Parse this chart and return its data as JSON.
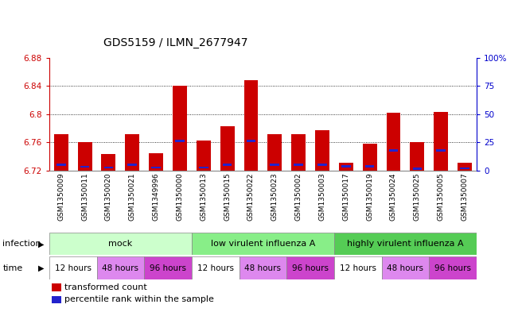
{
  "title": "GDS5159 / ILMN_2677947",
  "samples": [
    "GSM1350009",
    "GSM1350011",
    "GSM1350020",
    "GSM1350021",
    "GSM1349996",
    "GSM1350000",
    "GSM1350013",
    "GSM1350015",
    "GSM1350022",
    "GSM1350023",
    "GSM1350002",
    "GSM1350003",
    "GSM1350017",
    "GSM1350019",
    "GSM1350024",
    "GSM1350025",
    "GSM1350005",
    "GSM1350007"
  ],
  "red_values": [
    6.771,
    6.76,
    6.743,
    6.771,
    6.744,
    6.84,
    6.763,
    6.783,
    6.848,
    6.771,
    6.771,
    6.777,
    6.731,
    6.758,
    6.802,
    6.76,
    6.803,
    6.731
  ],
  "blue_values": [
    6.728,
    6.725,
    6.724,
    6.728,
    6.724,
    6.762,
    6.724,
    6.728,
    6.762,
    6.728,
    6.728,
    6.728,
    6.726,
    6.726,
    6.748,
    6.722,
    6.748,
    6.723
  ],
  "y_min": 6.72,
  "y_max": 6.88,
  "y_ticks_left": [
    6.72,
    6.76,
    6.8,
    6.84,
    6.88
  ],
  "y_ticks_right": [
    0,
    25,
    50,
    75,
    100
  ],
  "right_tick_labels": [
    "0",
    "25",
    "50",
    "75",
    "100%"
  ],
  "grid_lines": [
    6.76,
    6.8,
    6.84
  ],
  "bar_width": 0.6,
  "bar_color": "#cc0000",
  "blue_color": "#2222cc",
  "infection_groups": [
    {
      "label": "mock",
      "start": 0,
      "end": 6,
      "color": "#ccffcc"
    },
    {
      "label": "low virulent influenza A",
      "start": 6,
      "end": 12,
      "color": "#88ee88"
    },
    {
      "label": "highly virulent influenza A",
      "start": 12,
      "end": 18,
      "color": "#55cc55"
    }
  ],
  "time_groups": [
    {
      "label": "12 hours",
      "start": 0,
      "end": 2,
      "color": "#ffffff"
    },
    {
      "label": "48 hours",
      "start": 2,
      "end": 4,
      "color": "#dd88ee"
    },
    {
      "label": "96 hours",
      "start": 4,
      "end": 6,
      "color": "#cc44cc"
    },
    {
      "label": "12 hours",
      "start": 6,
      "end": 8,
      "color": "#ffffff"
    },
    {
      "label": "48 hours",
      "start": 8,
      "end": 10,
      "color": "#dd88ee"
    },
    {
      "label": "96 hours",
      "start": 10,
      "end": 12,
      "color": "#cc44cc"
    },
    {
      "label": "12 hours",
      "start": 12,
      "end": 14,
      "color": "#ffffff"
    },
    {
      "label": "48 hours",
      "start": 14,
      "end": 16,
      "color": "#dd88ee"
    },
    {
      "label": "96 hours",
      "start": 16,
      "end": 18,
      "color": "#cc44cc"
    }
  ],
  "left_tick_color": "#cc0000",
  "right_tick_color": "#0000cc",
  "title_fontsize": 10,
  "tick_fontsize": 7.5,
  "sample_fontsize": 6.5,
  "row_label_fontsize": 8,
  "row_text_fontsize": 8,
  "legend_fontsize": 8
}
